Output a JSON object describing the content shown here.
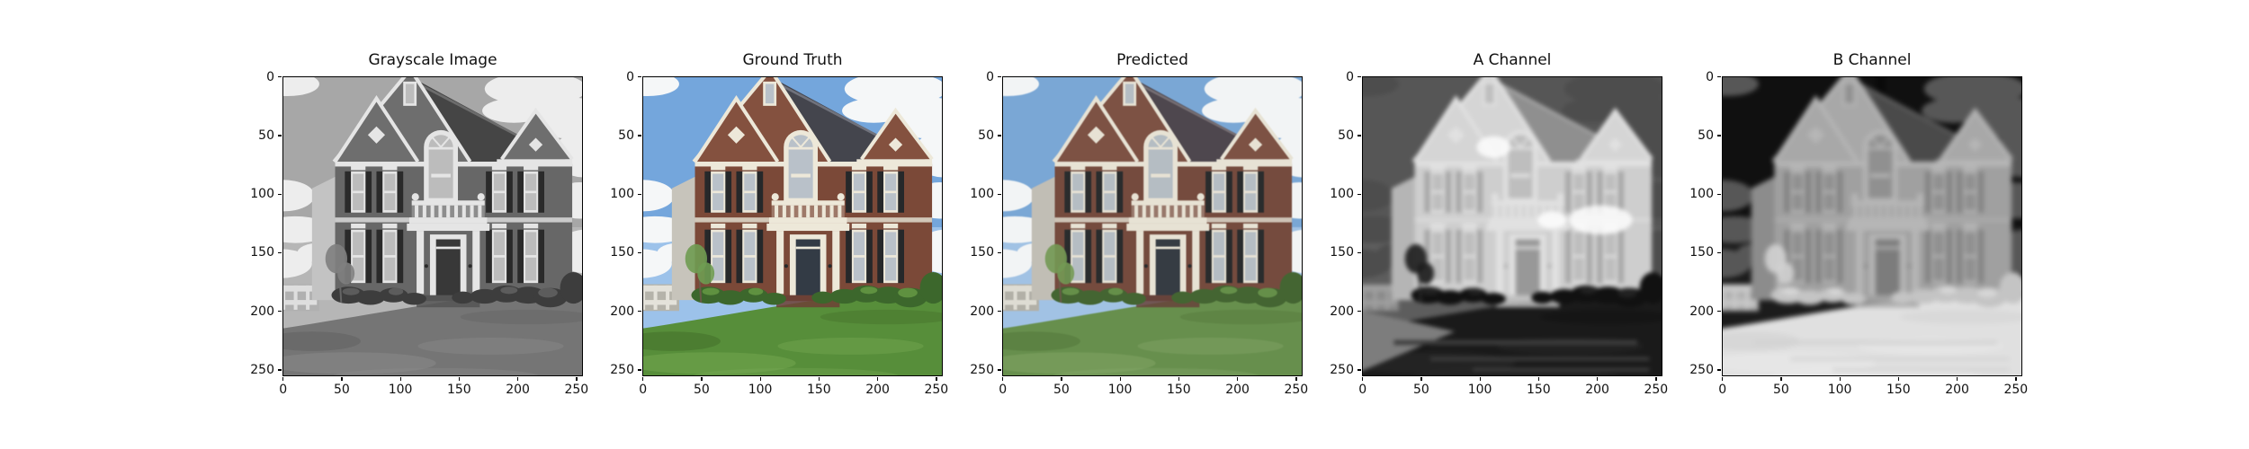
{
  "figure": {
    "background": "#ffffff",
    "panels": [
      {
        "id": "grayscale",
        "title": "Grayscale Image"
      },
      {
        "id": "ground_truth",
        "title": "Ground Truth"
      },
      {
        "id": "predicted",
        "title": "Predicted"
      },
      {
        "id": "a_channel",
        "title": "A Channel"
      },
      {
        "id": "b_channel",
        "title": "B Channel"
      }
    ],
    "x_ticks": [
      0,
      50,
      100,
      150,
      200,
      250
    ],
    "y_ticks": [
      0,
      50,
      100,
      150,
      200,
      250
    ]
  },
  "chart_data": [
    {
      "type": "image",
      "title": "Grayscale Image",
      "x_range": [
        0,
        256
      ],
      "y_range": [
        0,
        256
      ],
      "x_ticks": [
        0,
        50,
        100,
        150,
        200,
        250
      ],
      "y_ticks": [
        0,
        50,
        100,
        150,
        200,
        250
      ],
      "grid": false,
      "content": "Grayscale luminance photo of a two-story brick colonial house with three gables, central arched window, white balcony and portico columns, dark shuttered windows, shrubs, white fence at left, sloping lawn in foreground, cloudy sky",
      "dominant_colors": [
        "#a7a7a7",
        "#676767",
        "#757575",
        "#e5e5e5"
      ]
    },
    {
      "type": "image",
      "title": "Ground Truth",
      "x_range": [
        0,
        256
      ],
      "y_range": [
        0,
        256
      ],
      "x_ticks": [
        0,
        50,
        100,
        150,
        200,
        250
      ],
      "y_ticks": [
        0,
        50,
        100,
        150,
        200,
        250
      ],
      "grid": false,
      "content": "Original color photo: blue sky with white clouds, red-brown brick facade, dark slate roof, cream trim, green lawn",
      "dominant_colors": [
        "#74a6dc",
        "#7b4938",
        "#578e3a",
        "#ede8d9"
      ]
    },
    {
      "type": "image",
      "title": "Predicted",
      "x_range": [
        0,
        256
      ],
      "y_range": [
        0,
        256
      ],
      "x_ticks": [
        0,
        50,
        100,
        150,
        200,
        250
      ],
      "y_ticks": [
        0,
        50,
        100,
        150,
        200,
        250
      ],
      "grid": false,
      "content": "Model-colorized version of the same house; colors slightly muted and softer than ground truth",
      "dominant_colors": [
        "#78a7d8",
        "#774b3d",
        "#66904a",
        "#e7e2d3"
      ]
    },
    {
      "type": "image",
      "title": "A Channel",
      "x_range": [
        0,
        256
      ],
      "y_range": [
        0,
        256
      ],
      "x_ticks": [
        0,
        50,
        100,
        150,
        200,
        250
      ],
      "y_ticks": [
        0,
        50,
        100,
        150,
        200,
        250
      ],
      "grid": false,
      "content": "Predicted LAB a* channel rendered as blurry grayscale heatmap: brick house glows light/white, sky mid-dark gray, lawn and shrubs near black with horizontal streaks",
      "dominant_colors": [
        "#cecece",
        "#565656",
        "#1a1a1a"
      ]
    },
    {
      "type": "image",
      "title": "B Channel",
      "x_range": [
        0,
        256
      ],
      "y_range": [
        0,
        256
      ],
      "x_ticks": [
        0,
        50,
        100,
        150,
        200,
        250
      ],
      "y_ticks": [
        0,
        50,
        100,
        150,
        200,
        250
      ],
      "grid": false,
      "content": "Predicted LAB b* channel rendered as blurry grayscale heatmap: sky near black with gray cloud blobs, house mid-gray, lawn near white",
      "dominant_colors": [
        "#101010",
        "#a0a0a0",
        "#e0e0e0"
      ]
    }
  ]
}
